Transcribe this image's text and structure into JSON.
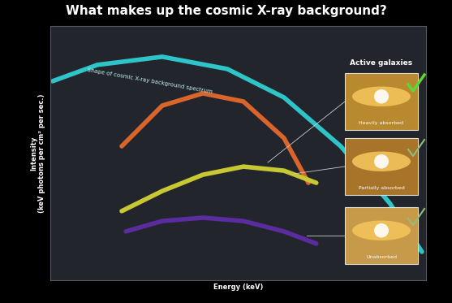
{
  "chart_data": {
    "type": "line",
    "title": "What makes up the cosmic X-ray background?",
    "x_label": "Energy (keV)",
    "y_label": "Intensity\n(keV photons per cm² per sec.)",
    "xlim": [
      0,
      10
    ],
    "ylim": [
      0,
      10
    ],
    "tick_labels": false,
    "grid": false,
    "series": [
      {
        "color": "#2ec4c8",
        "x": [
          0.06,
          1.25,
          2.98,
          4.71,
          6.22,
          7.73,
          9.03,
          9.89
        ],
        "values": [
          7.83,
          8.47,
          8.79,
          8.31,
          7.19,
          5.27,
          3.04,
          1.12
        ]
      },
      {
        "color": "#d9652b",
        "x": [
          1.9,
          2.98,
          4.06,
          5.14,
          6.22,
          6.87
        ],
        "values": [
          5.27,
          6.87,
          7.35,
          7.03,
          5.59,
          3.83
        ]
      },
      {
        "color": "#c8c834",
        "x": [
          1.9,
          2.98,
          4.06,
          5.14,
          6.22,
          7.08
        ],
        "values": [
          2.72,
          3.51,
          4.15,
          4.47,
          4.31,
          3.83
        ]
      },
      {
        "color": "#5a2ca0",
        "x": [
          2.01,
          2.98,
          4.06,
          5.14,
          6.22,
          7.08
        ],
        "values": [
          1.92,
          2.33,
          2.46,
          2.33,
          1.92,
          1.44
        ]
      }
    ],
    "annotations": [
      "Shape of cosmic X-ray background spectrum",
      "Active galaxies",
      "Heavily absorbed",
      "Partially absorbed",
      "Unabsorbed"
    ]
  }
}
